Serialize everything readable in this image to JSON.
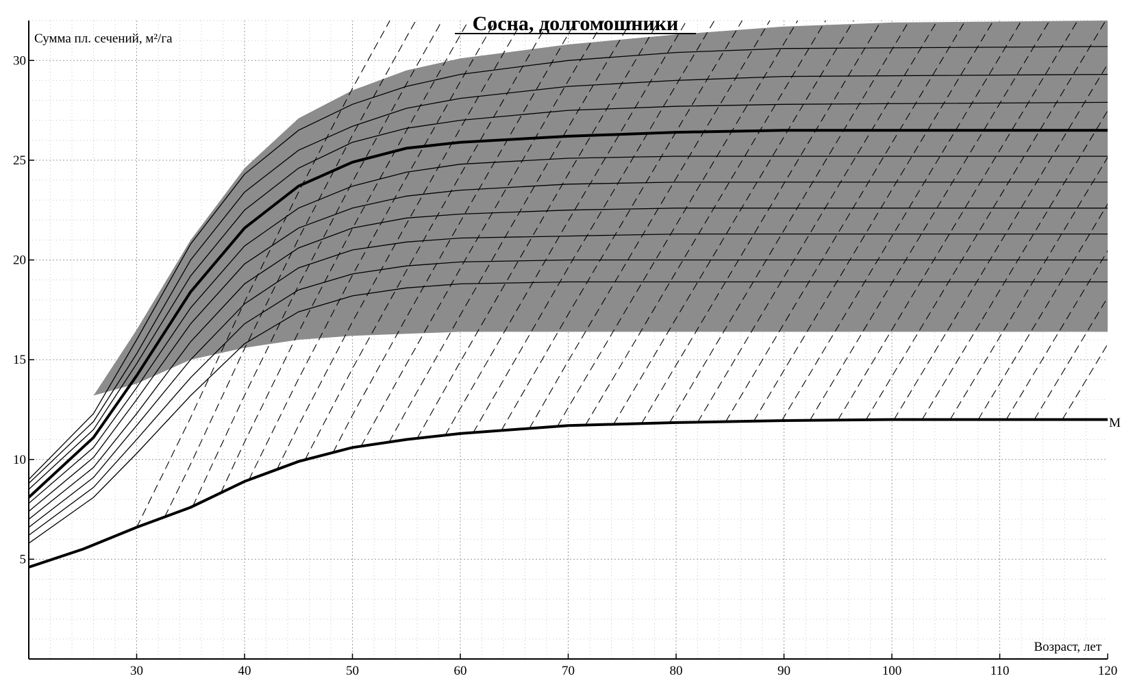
{
  "chart_data": {
    "type": "line",
    "title": "Сосна, долгомошники",
    "ylabel": "Сумма пл. сечений, м²/га",
    "xlabel": "Возраст, лет",
    "xlim": [
      20,
      120
    ],
    "ylim": [
      0,
      32
    ],
    "x_ticks": [
      30,
      40,
      50,
      60,
      70,
      80,
      90,
      100,
      110,
      120
    ],
    "y_ticks": [
      5,
      10,
      15,
      20,
      25,
      30
    ],
    "grid": true,
    "shaded_band_color": "#8c8c8c",
    "min_line_label": "М",
    "shaded_band": {
      "upper": [
        [
          26,
          13.2
        ],
        [
          30,
          16.5
        ],
        [
          35,
          21.0
        ],
        [
          40,
          24.6
        ],
        [
          45,
          27.1
        ],
        [
          50,
          28.5
        ],
        [
          55,
          29.5
        ],
        [
          60,
          30.1
        ],
        [
          70,
          30.8
        ],
        [
          80,
          31.3
        ],
        [
          90,
          31.7
        ],
        [
          100,
          31.9
        ],
        [
          120,
          32.0
        ]
      ],
      "lower": [
        [
          26,
          13.2
        ],
        [
          30,
          13.8
        ],
        [
          35,
          15.0
        ],
        [
          40,
          15.6
        ],
        [
          45,
          16.0
        ],
        [
          50,
          16.2
        ],
        [
          55,
          16.3
        ],
        [
          60,
          16.4
        ],
        [
          120,
          16.4
        ]
      ]
    },
    "min_line": [
      [
        20,
        4.6
      ],
      [
        25,
        5.5
      ],
      [
        30,
        6.6
      ],
      [
        35,
        7.6
      ],
      [
        40,
        8.9
      ],
      [
        45,
        9.9
      ],
      [
        50,
        10.6
      ],
      [
        55,
        11.0
      ],
      [
        60,
        11.3
      ],
      [
        70,
        11.7
      ],
      [
        80,
        11.85
      ],
      [
        90,
        11.95
      ],
      [
        100,
        12.0
      ],
      [
        120,
        12.0
      ]
    ],
    "series": [
      {
        "values": [
          [
            20,
            9.0
          ],
          [
            26,
            12.3
          ],
          [
            30,
            16.0
          ],
          [
            35,
            20.8
          ],
          [
            40,
            24.3
          ],
          [
            45,
            26.5
          ],
          [
            50,
            27.8
          ],
          [
            55,
            28.7
          ],
          [
            60,
            29.3
          ],
          [
            70,
            30.0
          ],
          [
            80,
            30.4
          ],
          [
            90,
            30.6
          ],
          [
            120,
            30.7
          ]
        ]
      },
      {
        "values": [
          [
            20,
            8.8
          ],
          [
            26,
            11.9
          ],
          [
            30,
            15.3
          ],
          [
            35,
            20.0
          ],
          [
            40,
            23.4
          ],
          [
            45,
            25.5
          ],
          [
            50,
            26.7
          ],
          [
            55,
            27.6
          ],
          [
            60,
            28.1
          ],
          [
            70,
            28.7
          ],
          [
            80,
            29.0
          ],
          [
            90,
            29.2
          ],
          [
            120,
            29.3
          ]
        ]
      },
      {
        "values": [
          [
            20,
            8.5
          ],
          [
            26,
            11.5
          ],
          [
            30,
            14.8
          ],
          [
            35,
            19.2
          ],
          [
            40,
            22.5
          ],
          [
            45,
            24.6
          ],
          [
            50,
            25.9
          ],
          [
            55,
            26.6
          ],
          [
            60,
            27.0
          ],
          [
            70,
            27.5
          ],
          [
            80,
            27.7
          ],
          [
            90,
            27.8
          ],
          [
            120,
            27.9
          ]
        ]
      },
      {
        "values": [
          [
            20,
            8.1
          ],
          [
            26,
            11.1
          ],
          [
            30,
            14.2
          ],
          [
            35,
            18.4
          ],
          [
            40,
            21.6
          ],
          [
            45,
            23.7
          ],
          [
            50,
            24.9
          ],
          [
            55,
            25.6
          ],
          [
            60,
            25.9
          ],
          [
            70,
            26.2
          ],
          [
            80,
            26.4
          ],
          [
            90,
            26.5
          ],
          [
            120,
            26.5
          ]
        ]
      },
      {
        "values": [
          [
            20,
            7.8
          ],
          [
            26,
            10.6
          ],
          [
            30,
            13.6
          ],
          [
            35,
            17.6
          ],
          [
            40,
            20.7
          ],
          [
            45,
            22.6
          ],
          [
            50,
            23.7
          ],
          [
            55,
            24.4
          ],
          [
            60,
            24.8
          ],
          [
            70,
            25.1
          ],
          [
            80,
            25.2
          ],
          [
            90,
            25.2
          ],
          [
            120,
            25.2
          ]
        ]
      },
      {
        "values": [
          [
            20,
            7.4
          ],
          [
            26,
            10.1
          ],
          [
            30,
            13.0
          ],
          [
            35,
            16.8
          ],
          [
            40,
            19.8
          ],
          [
            45,
            21.6
          ],
          [
            50,
            22.6
          ],
          [
            55,
            23.2
          ],
          [
            60,
            23.5
          ],
          [
            70,
            23.8
          ],
          [
            80,
            23.9
          ],
          [
            90,
            23.9
          ],
          [
            120,
            23.9
          ]
        ]
      },
      {
        "values": [
          [
            20,
            7.0
          ],
          [
            26,
            9.6
          ],
          [
            30,
            12.3
          ],
          [
            35,
            15.9
          ],
          [
            40,
            18.8
          ],
          [
            45,
            20.6
          ],
          [
            50,
            21.6
          ],
          [
            55,
            22.1
          ],
          [
            60,
            22.3
          ],
          [
            70,
            22.5
          ],
          [
            80,
            22.6
          ],
          [
            90,
            22.6
          ],
          [
            120,
            22.6
          ]
        ]
      },
      {
        "values": [
          [
            20,
            6.6
          ],
          [
            26,
            9.1
          ],
          [
            30,
            11.7
          ],
          [
            35,
            15.0
          ],
          [
            40,
            17.8
          ],
          [
            45,
            19.6
          ],
          [
            50,
            20.5
          ],
          [
            55,
            20.9
          ],
          [
            60,
            21.1
          ],
          [
            70,
            21.2
          ],
          [
            80,
            21.3
          ],
          [
            90,
            21.3
          ],
          [
            120,
            21.3
          ]
        ]
      },
      {
        "values": [
          [
            20,
            6.2
          ],
          [
            26,
            8.6
          ],
          [
            30,
            11.0
          ],
          [
            35,
            14.1
          ],
          [
            40,
            16.8
          ],
          [
            45,
            18.5
          ],
          [
            50,
            19.3
          ],
          [
            55,
            19.7
          ],
          [
            60,
            19.9
          ],
          [
            70,
            20.0
          ],
          [
            80,
            20.0
          ],
          [
            90,
            20.0
          ],
          [
            120,
            20.0
          ]
        ]
      },
      {
        "values": [
          [
            20,
            5.8
          ],
          [
            26,
            8.1
          ],
          [
            30,
            10.3
          ],
          [
            35,
            13.2
          ],
          [
            40,
            15.8
          ],
          [
            45,
            17.4
          ],
          [
            50,
            18.2
          ],
          [
            55,
            18.6
          ],
          [
            60,
            18.8
          ],
          [
            70,
            18.9
          ],
          [
            80,
            18.9
          ],
          [
            120,
            18.9
          ]
        ]
      }
    ]
  }
}
